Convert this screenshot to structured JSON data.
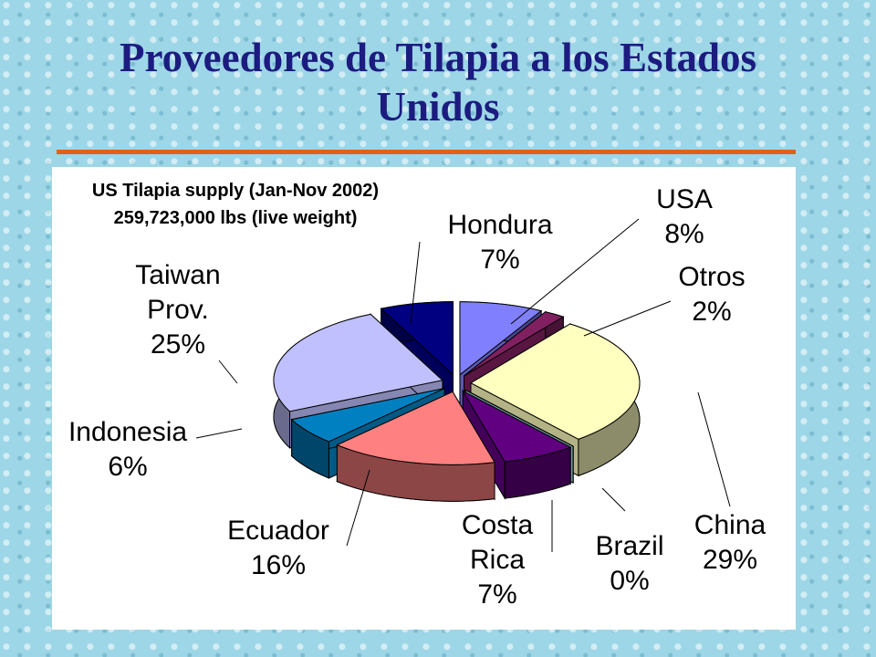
{
  "title": "Proveedores de Tilapia a los Estados Unidos",
  "chart_data": {
    "type": "pie",
    "title": "US Tilapia supply (Jan-Nov 2002)",
    "subtitle": "259,723,000 lbs (live weight)",
    "categories": [
      "USA",
      "Otros",
      "China",
      "Brazil",
      "Costa Rica",
      "Ecuador",
      "Indonesia",
      "Taiwan Prov.",
      "Hondura"
    ],
    "values": [
      8,
      2,
      29,
      0,
      7,
      16,
      6,
      25,
      7
    ],
    "value_labels": [
      "8%",
      "2%",
      "29%",
      "0%",
      "7%",
      "16%",
      "6%",
      "25%",
      "7%"
    ],
    "colors": [
      "#8080ff",
      "#802060",
      "#ffffc0",
      "#a0e0e0",
      "#600080",
      "#ff8080",
      "#0080c0",
      "#c0c0ff",
      "#000080"
    ]
  }
}
